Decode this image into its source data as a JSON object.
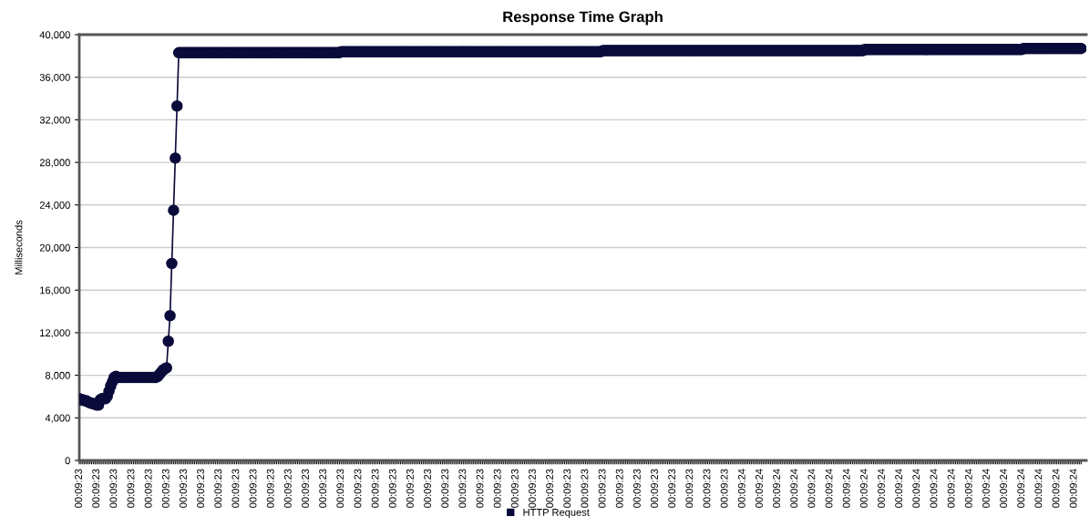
{
  "chart_data": {
    "type": "line",
    "title": "Response Time Graph",
    "ylabel": "Milliseconds",
    "categories": [
      "00:09:23",
      null,
      null,
      null,
      null,
      null,
      null,
      null,
      null,
      null,
      "00:09:23",
      null,
      null,
      null,
      null,
      null,
      null,
      null,
      null,
      null,
      "00:09:23",
      null,
      null,
      null,
      null,
      null,
      null,
      null,
      null,
      null,
      "00:09:23",
      null,
      null,
      null,
      null,
      null,
      null,
      null,
      null,
      null,
      "00:09:23",
      null,
      null,
      null,
      null,
      null,
      null,
      null,
      null,
      null,
      "00:09:23",
      null,
      null,
      null,
      null,
      null,
      null,
      null,
      null,
      null,
      "00:09:23",
      null,
      null,
      null,
      null,
      null,
      null,
      null,
      null,
      null,
      "00:09:23",
      null,
      null,
      null,
      null,
      null,
      null,
      null,
      null,
      null,
      "00:09:23",
      null,
      null,
      null,
      null,
      null,
      null,
      null,
      null,
      null,
      "00:09:23",
      null,
      null,
      null,
      null,
      null,
      null,
      null,
      null,
      null,
      "00:09:23",
      null,
      null,
      null,
      null,
      null,
      null,
      null,
      null,
      null,
      "00:09:23",
      null,
      null,
      null,
      null,
      null,
      null,
      null,
      null,
      null,
      "00:09:23",
      null,
      null,
      null,
      null,
      null,
      null,
      null,
      null,
      null,
      "00:09:23",
      null,
      null,
      null,
      null,
      null,
      null,
      null,
      null,
      null,
      "00:09:23",
      null,
      null,
      null,
      null,
      null,
      null,
      null,
      null,
      null,
      "00:09:23",
      null,
      null,
      null,
      null,
      null,
      null,
      null,
      null,
      null,
      "00:09:23",
      null,
      null,
      null,
      null,
      null,
      null,
      null,
      null,
      null,
      "00:09:23",
      null,
      null,
      null,
      null,
      null,
      null,
      null,
      null,
      null,
      "00:09:23",
      null,
      null,
      null,
      null,
      null,
      null,
      null,
      null,
      null,
      "00:09:23",
      null,
      null,
      null,
      null,
      null,
      null,
      null,
      null,
      null,
      "00:09:23",
      null,
      null,
      null,
      null,
      null,
      null,
      null,
      null,
      null,
      "00:09:23",
      null,
      null,
      null,
      null,
      null,
      null,
      null,
      null,
      null,
      "00:09:23",
      null,
      null,
      null,
      null,
      null,
      null,
      null,
      null,
      null,
      "00:09:23",
      null,
      null,
      null,
      null,
      null,
      null,
      null,
      null,
      null,
      "00:09:23",
      null,
      null,
      null,
      null,
      null,
      null,
      null,
      null,
      null,
      "00:09:23",
      null,
      null,
      null,
      null,
      null,
      null,
      null,
      null,
      null,
      "00:09:23",
      null,
      null,
      null,
      null,
      null,
      null,
      null,
      null,
      null,
      "00:09:23",
      null,
      null,
      null,
      null,
      null,
      null,
      null,
      null,
      null,
      "00:09:23",
      null,
      null,
      null,
      null,
      null,
      null,
      null,
      null,
      null,
      "00:09:23",
      null,
      null,
      null,
      null,
      null,
      null,
      null,
      null,
      null,
      "00:09:23",
      null,
      null,
      null,
      null,
      null,
      null,
      null,
      null,
      null,
      "00:09:23",
      null,
      null,
      null,
      null,
      null,
      null,
      null,
      null,
      null,
      "00:09:23",
      null,
      null,
      null,
      null,
      null,
      null,
      null,
      null,
      null,
      "00:09:23",
      null,
      null,
      null,
      null,
      null,
      null,
      null,
      null,
      null,
      "00:09:23",
      null,
      null,
      null,
      null,
      null,
      null,
      null,
      null,
      null,
      "00:09:23",
      null,
      null,
      null,
      null,
      null,
      null,
      null,
      null,
      null,
      "00:09:23",
      null,
      null,
      null,
      null,
      null,
      null,
      null,
      null,
      null,
      "00:09:23",
      null,
      null,
      null,
      null,
      null,
      null,
      null,
      null,
      null,
      "00:09:24",
      null,
      null,
      null,
      null,
      null,
      null,
      null,
      null,
      null,
      "00:09:24",
      null,
      null,
      null,
      null,
      null,
      null,
      null,
      null,
      null,
      "00:09:24",
      null,
      null,
      null,
      null,
      null,
      null,
      null,
      null,
      null,
      "00:09:24",
      null,
      null,
      null,
      null,
      null,
      null,
      null,
      null,
      null,
      "00:09:24",
      null,
      null,
      null,
      null,
      null,
      null,
      null,
      null,
      null,
      "00:09:24",
      null,
      null,
      null,
      null,
      null,
      null,
      null,
      null,
      null,
      "00:09:24",
      null,
      null,
      null,
      null,
      null,
      null,
      null,
      null,
      null,
      "00:09:24",
      null,
      null,
      null,
      null,
      null,
      null,
      null,
      null,
      null,
      "00:09:24",
      null,
      null,
      null,
      null,
      null,
      null,
      null,
      null,
      null,
      "00:09:24",
      null,
      null,
      null,
      null,
      null,
      null,
      null,
      null,
      null,
      "00:09:24",
      null,
      null,
      null,
      null,
      null,
      null,
      null,
      null,
      null,
      "00:09:24",
      null,
      null,
      null,
      null,
      null,
      null,
      null,
      null,
      null,
      "00:09:24",
      null,
      null,
      null,
      null,
      null,
      null,
      null,
      null,
      null,
      "00:09:24",
      null,
      null,
      null,
      null,
      null,
      null,
      null,
      null,
      null,
      "00:09:24",
      null,
      null,
      null,
      null,
      null,
      null,
      null,
      null,
      null,
      "00:09:24",
      null,
      null,
      null,
      null,
      null,
      null,
      null,
      null,
      null,
      "00:09:24",
      null,
      null,
      null,
      null,
      null,
      null,
      null,
      null,
      null,
      "00:09:24",
      null,
      null,
      null,
      null,
      null,
      null,
      null,
      null,
      null,
      "00:09:24",
      null,
      null,
      null,
      null,
      null,
      null,
      null,
      null,
      null,
      "00:09:24",
      null,
      null,
      null,
      null
    ],
    "series": [
      {
        "name": "HTTP Request",
        "color": "#0b0b3b",
        "values": [
          5800,
          5700,
          5700,
          5600,
          5600,
          5500,
          5400,
          5400,
          5300,
          5300,
          5200,
          5200,
          5700,
          5800,
          5800,
          5800,
          6000,
          6500,
          7000,
          7400,
          7800,
          7900,
          7800,
          7800,
          7800,
          7800,
          7800,
          7800,
          7800,
          7800,
          7800,
          7800,
          7800,
          7800,
          7800,
          7800,
          7800,
          7800,
          7800,
          7800,
          7800,
          7800,
          7800,
          7800,
          7800,
          7900,
          8100,
          8300,
          8500,
          8600,
          8700,
          11200,
          13600,
          18500,
          23500,
          28400,
          33300,
          38300,
          38300,
          38300,
          38300,
          38300,
          38300,
          38300,
          38300,
          38300,
          38300,
          38300,
          38300,
          38300,
          38300,
          38300,
          38300,
          38300,
          38300,
          38300,
          38300,
          38300,
          38300,
          38300,
          38300,
          38300,
          38300,
          38300,
          38300,
          38300,
          38300,
          38300,
          38300,
          38300,
          38300,
          38300,
          38300,
          38300,
          38300,
          38300,
          38300,
          38300,
          38300,
          38300,
          38300,
          38300,
          38300,
          38300,
          38300,
          38300,
          38300,
          38300,
          38300,
          38300,
          38300,
          38300,
          38300,
          38300,
          38300,
          38300,
          38300,
          38300,
          38300,
          38300,
          38300,
          38300,
          38300,
          38300,
          38300,
          38300,
          38300,
          38300,
          38300,
          38300,
          38300,
          38300,
          38300,
          38300,
          38300,
          38300,
          38300,
          38300,
          38300,
          38300,
          38300,
          38300,
          38300,
          38300,
          38300,
          38300,
          38300,
          38300,
          38300,
          38300,
          38400,
          38400,
          38400,
          38400,
          38400,
          38400,
          38400,
          38400,
          38400,
          38400,
          38400,
          38400,
          38400,
          38400,
          38400,
          38400,
          38400,
          38400,
          38400,
          38400,
          38400,
          38400,
          38400,
          38400,
          38400,
          38400,
          38400,
          38400,
          38400,
          38400,
          38400,
          38400,
          38400,
          38400,
          38400,
          38400,
          38400,
          38400,
          38400,
          38400,
          38400,
          38400,
          38400,
          38400,
          38400,
          38400,
          38400,
          38400,
          38400,
          38400,
          38400,
          38400,
          38400,
          38400,
          38400,
          38400,
          38400,
          38400,
          38400,
          38400,
          38400,
          38400,
          38400,
          38400,
          38400,
          38400,
          38400,
          38400,
          38400,
          38400,
          38400,
          38400,
          38400,
          38400,
          38400,
          38400,
          38400,
          38400,
          38400,
          38400,
          38400,
          38400,
          38400,
          38400,
          38400,
          38400,
          38400,
          38400,
          38400,
          38400,
          38400,
          38400,
          38400,
          38400,
          38400,
          38400,
          38400,
          38400,
          38400,
          38400,
          38400,
          38400,
          38400,
          38400,
          38400,
          38400,
          38400,
          38400,
          38400,
          38400,
          38400,
          38400,
          38400,
          38400,
          38400,
          38400,
          38400,
          38400,
          38400,
          38400,
          38400,
          38400,
          38400,
          38400,
          38400,
          38400,
          38400,
          38400,
          38400,
          38400,
          38400,
          38400,
          38400,
          38400,
          38400,
          38400,
          38400,
          38400,
          38400,
          38400,
          38400,
          38400,
          38400,
          38400,
          38400,
          38400,
          38400,
          38400,
          38400,
          38400,
          38500,
          38500,
          38500,
          38500,
          38500,
          38500,
          38500,
          38500,
          38500,
          38500,
          38500,
          38500,
          38500,
          38500,
          38500,
          38500,
          38500,
          38500,
          38500,
          38500,
          38500,
          38500,
          38500,
          38500,
          38500,
          38500,
          38500,
          38500,
          38500,
          38500,
          38500,
          38500,
          38500,
          38500,
          38500,
          38500,
          38500,
          38500,
          38500,
          38500,
          38500,
          38500,
          38500,
          38500,
          38500,
          38500,
          38500,
          38500,
          38500,
          38500,
          38500,
          38500,
          38500,
          38500,
          38500,
          38500,
          38500,
          38500,
          38500,
          38500,
          38500,
          38500,
          38500,
          38500,
          38500,
          38500,
          38500,
          38500,
          38500,
          38500,
          38500,
          38500,
          38500,
          38500,
          38500,
          38500,
          38500,
          38500,
          38500,
          38500,
          38500,
          38500,
          38500,
          38500,
          38500,
          38500,
          38500,
          38500,
          38500,
          38500,
          38500,
          38500,
          38500,
          38500,
          38500,
          38500,
          38500,
          38500,
          38500,
          38500,
          38500,
          38500,
          38500,
          38500,
          38500,
          38500,
          38500,
          38500,
          38500,
          38500,
          38500,
          38500,
          38500,
          38500,
          38500,
          38500,
          38500,
          38500,
          38500,
          38500,
          38500,
          38500,
          38500,
          38500,
          38500,
          38500,
          38500,
          38500,
          38500,
          38500,
          38500,
          38500,
          38500,
          38500,
          38500,
          38500,
          38500,
          38500,
          38500,
          38500,
          38500,
          38500,
          38500,
          38500,
          38500,
          38500,
          38500,
          38500,
          38500,
          38500,
          38600,
          38600,
          38600,
          38600,
          38600,
          38600,
          38600,
          38600,
          38600,
          38600,
          38600,
          38600,
          38600,
          38600,
          38600,
          38600,
          38600,
          38600,
          38600,
          38600,
          38600,
          38600,
          38600,
          38600,
          38600,
          38600,
          38600,
          38600,
          38600,
          38600,
          38600,
          38600,
          38600,
          38600,
          38600,
          38600,
          38600,
          38600,
          38600,
          38600,
          38600,
          38600,
          38600,
          38600,
          38600,
          38600,
          38600,
          38600,
          38600,
          38600,
          38600,
          38600,
          38600,
          38600,
          38600,
          38600,
          38600,
          38600,
          38600,
          38600,
          38600,
          38600,
          38600,
          38600,
          38600,
          38600,
          38600,
          38600,
          38600,
          38600,
          38600,
          38600,
          38600,
          38600,
          38600,
          38600,
          38600,
          38600,
          38600,
          38600,
          38600,
          38600,
          38600,
          38600,
          38600,
          38600,
          38600,
          38600,
          38600,
          38600,
          38600,
          38700,
          38700,
          38700,
          38700,
          38700,
          38700,
          38700,
          38700,
          38700,
          38700,
          38700,
          38700,
          38700,
          38700,
          38700,
          38700,
          38700,
          38700,
          38700,
          38700,
          38700,
          38700,
          38700,
          38700,
          38700,
          38700,
          38700,
          38700,
          38700,
          38700,
          38700,
          38700,
          38700,
          38700
        ]
      }
    ],
    "ylim": [
      0,
      40000
    ],
    "yticks": [
      {
        "value": 0,
        "label": "0"
      },
      {
        "value": 4000,
        "label": "4,000"
      },
      {
        "value": 8000,
        "label": "8,000"
      },
      {
        "value": 12000,
        "label": "12,000"
      },
      {
        "value": 16000,
        "label": "16,000"
      },
      {
        "value": 20000,
        "label": "20,000"
      },
      {
        "value": 24000,
        "label": "24,000"
      },
      {
        "value": 28000,
        "label": "28,000"
      },
      {
        "value": 32000,
        "label": "32,000"
      },
      {
        "value": 36000,
        "label": "36,000"
      },
      {
        "value": 40000,
        "label": "40,000"
      }
    ],
    "grid": "y",
    "legend": "bottom",
    "marker": "circle",
    "line_style": "solid"
  }
}
